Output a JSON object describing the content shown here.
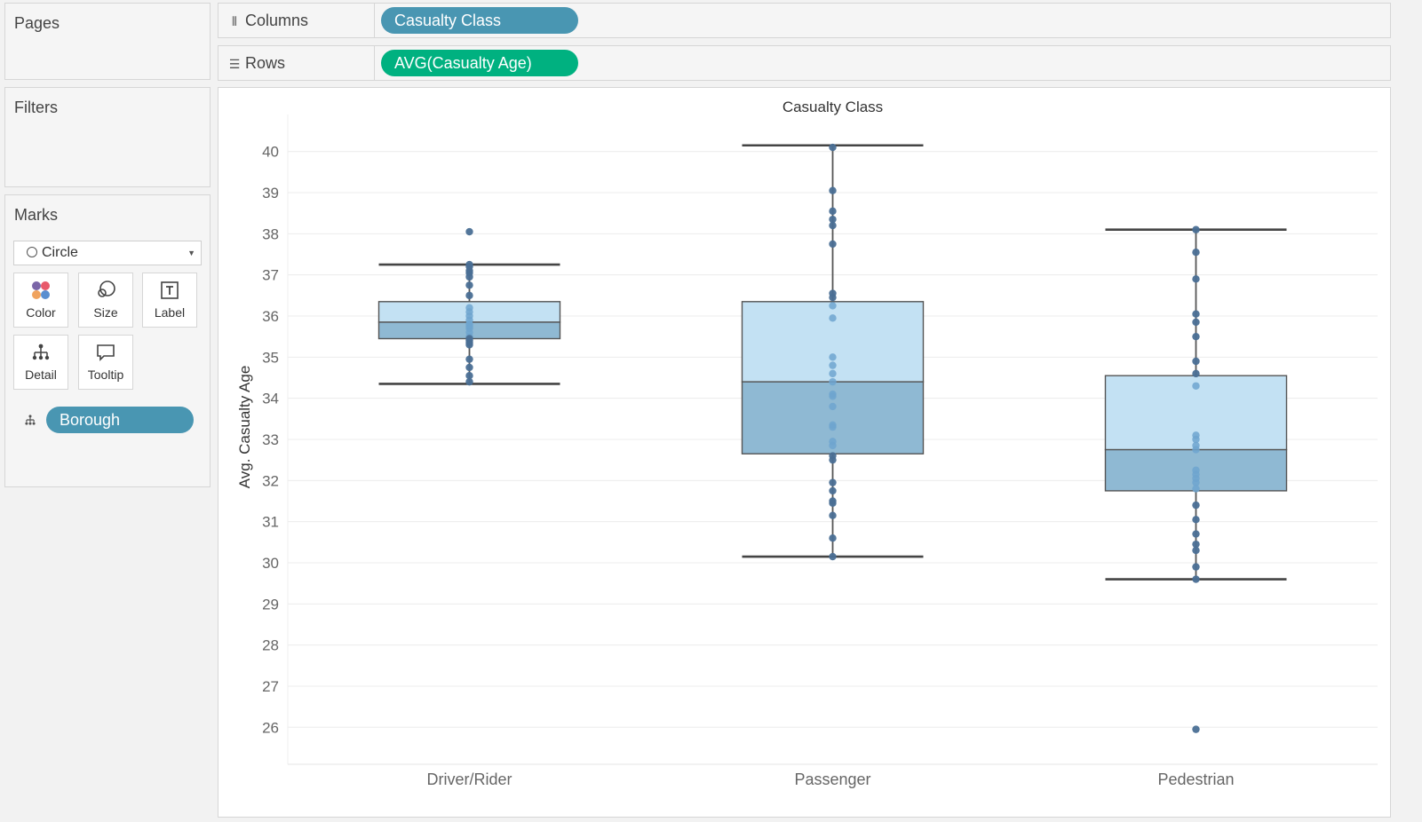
{
  "sidebar": {
    "pages_title": "Pages",
    "filters_title": "Filters",
    "marks_title": "Marks",
    "mark_type": "Circle",
    "mark_buttons": [
      {
        "label": "Color",
        "icon": "color-dots-icon"
      },
      {
        "label": "Size",
        "icon": "size-circles-icon"
      },
      {
        "label": "Label",
        "icon": "text-box-icon"
      },
      {
        "label": "Detail",
        "icon": "detail-hierarchy-icon"
      },
      {
        "label": "Tooltip",
        "icon": "speech-bubble-icon"
      }
    ],
    "detail_pill": "Borough"
  },
  "shelves": {
    "columns_label": "Columns",
    "columns_pill": "Casualty Class",
    "rows_label": "Rows",
    "rows_pill": "AVG(Casualty Age)"
  },
  "colors": {
    "pill_dimension": "#4996b2",
    "pill_measure": "#00b180",
    "box_upper": "#c3e1f3",
    "box_lower": "#8fb9d3",
    "dot": "#4a6f95",
    "dot_inside_box": "#6ea5cf"
  },
  "chart_data": {
    "type": "box",
    "title": "Casualty Class",
    "ylabel": "Avg. Casualty Age",
    "ylim": [
      25.1,
      40.9
    ],
    "yticks": [
      26,
      27,
      28,
      29,
      30,
      31,
      32,
      33,
      34,
      35,
      36,
      37,
      38,
      39,
      40
    ],
    "categories": [
      "Driver/Rider",
      "Passenger",
      "Pedestrian"
    ],
    "boxes": [
      {
        "name": "Driver/Rider",
        "whisker_low": 34.35,
        "q1": 35.45,
        "median": 35.85,
        "q3": 36.35,
        "whisker_high": 37.25
      },
      {
        "name": "Passenger",
        "whisker_low": 30.15,
        "q1": 32.65,
        "median": 34.4,
        "q3": 36.35,
        "whisker_high": 40.15
      },
      {
        "name": "Pedestrian",
        "whisker_low": 29.6,
        "q1": 31.75,
        "median": 32.75,
        "q3": 34.55,
        "whisker_high": 38.1
      }
    ],
    "points": [
      [
        38.05,
        37.25,
        37.2,
        37.1,
        37.05,
        36.95,
        36.75,
        36.5,
        36.2,
        36.1,
        36.0,
        35.9,
        35.8,
        35.75,
        35.7,
        35.6,
        35.5,
        35.45,
        35.4,
        35.35,
        35.3,
        34.95,
        34.75,
        34.55,
        34.4
      ],
      [
        40.1,
        39.05,
        38.55,
        38.35,
        38.2,
        37.75,
        36.55,
        36.45,
        36.25,
        35.95,
        35.0,
        34.8,
        34.6,
        34.4,
        34.1,
        34.05,
        33.8,
        33.35,
        33.3,
        32.95,
        32.85,
        32.6,
        32.5,
        31.95,
        31.75,
        31.5,
        31.45,
        31.15,
        30.6,
        30.15
      ],
      [
        38.1,
        37.55,
        36.9,
        36.05,
        35.85,
        35.5,
        34.9,
        34.6,
        34.3,
        33.1,
        33.0,
        32.85,
        32.75,
        32.25,
        32.15,
        32.05,
        31.95,
        31.8,
        31.4,
        31.05,
        30.7,
        30.45,
        30.3,
        29.9,
        29.6,
        25.95
      ]
    ]
  }
}
